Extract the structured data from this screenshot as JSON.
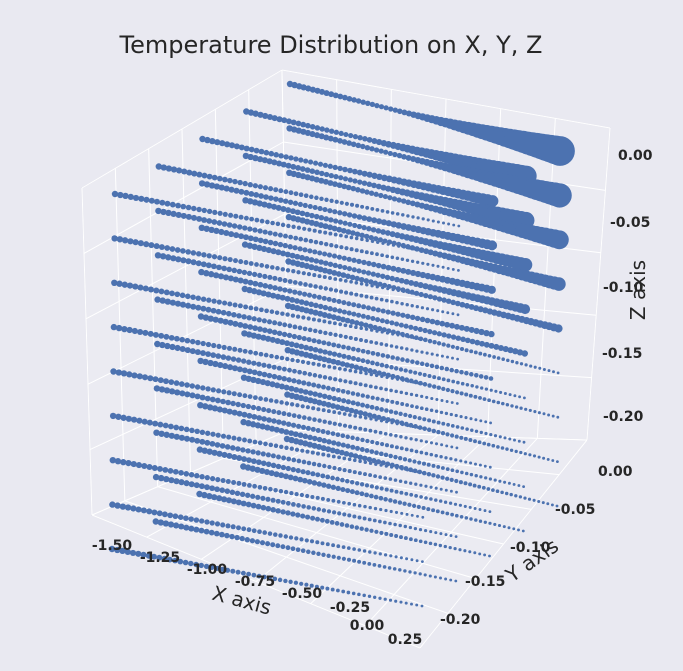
{
  "chart_data": {
    "type": "scatter",
    "projection": "3d",
    "title": "Temperature Distribution on X, Y, Z",
    "xlabel": "X axis",
    "ylabel": "Y axis",
    "zlabel": "Z axis",
    "x_ticks": [
      "-1.50",
      "-1.25",
      "-1.00",
      "-0.75",
      "-0.50",
      "-0.25",
      "0.00",
      "0.25"
    ],
    "y_ticks": [
      "0.00",
      "-0.05",
      "-0.10",
      "-0.15",
      "-0.20"
    ],
    "z_ticks": [
      "0.00",
      "-0.05",
      "-0.10",
      "-0.15",
      "-0.20"
    ],
    "xlim": [
      -1.55,
      0.3
    ],
    "ylim": [
      -0.22,
      0.01
    ],
    "zlim": [
      -0.22,
      0.01
    ],
    "grid": true,
    "marker_color": "#4c72b0",
    "pane_color": "#ebebf2",
    "grid_color": "#ffffff",
    "series": [
      {
        "z_levels": [
          0.0,
          -0.025,
          -0.05,
          -0.075,
          -0.1,
          -0.125,
          -0.15,
          -0.175,
          -0.2
        ],
        "y_rows": [
          0.0,
          -0.05,
          -0.1,
          -0.15,
          -0.2
        ],
        "x_range": [
          -1.5,
          0.25
        ],
        "points_per_line": 60
      }
    ]
  }
}
